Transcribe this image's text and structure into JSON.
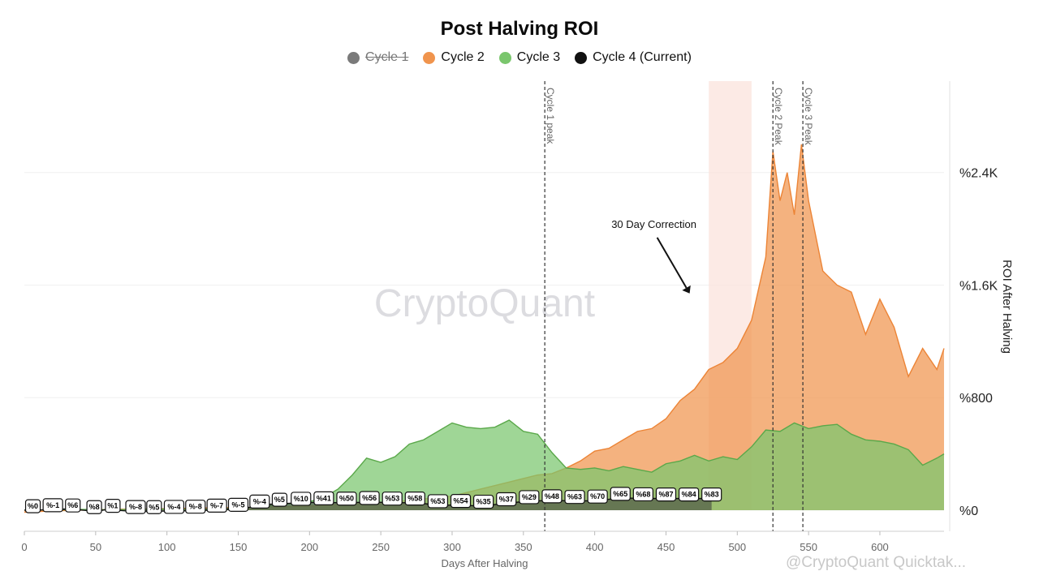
{
  "chart_data": {
    "type": "area",
    "title": "Post Halving ROI",
    "xlabel": "Days After Halving",
    "ylabel": "ROI After Halving",
    "xlim": [
      0,
      645
    ],
    "ylim": [
      -150,
      3050
    ],
    "x_ticks": [
      0,
      50,
      100,
      150,
      200,
      250,
      300,
      350,
      400,
      450,
      500,
      550,
      600
    ],
    "y_ticks": [
      {
        "value": 0,
        "label": "%0"
      },
      {
        "value": 800,
        "label": "%800"
      },
      {
        "value": 1600,
        "label": "%1.6K"
      },
      {
        "value": 2400,
        "label": "%2.4K"
      }
    ],
    "grid": true,
    "legend_position": "top-center",
    "series": [
      {
        "name": "Cycle 1",
        "color": "#7a7a7a",
        "hidden": true
      },
      {
        "name": "Cycle 2",
        "color": "#f0944d",
        "x": [
          0,
          20,
          40,
          60,
          80,
          100,
          120,
          140,
          160,
          180,
          200,
          220,
          240,
          260,
          280,
          300,
          320,
          340,
          360,
          370,
          380,
          390,
          400,
          410,
          420,
          430,
          440,
          450,
          460,
          470,
          480,
          490,
          500,
          510,
          520,
          525,
          530,
          535,
          540,
          545,
          550,
          555,
          560,
          570,
          580,
          590,
          600,
          610,
          620,
          630,
          640,
          645
        ],
        "y": [
          -15,
          -5,
          0,
          5,
          8,
          10,
          15,
          18,
          20,
          25,
          30,
          40,
          50,
          60,
          80,
          100,
          150,
          200,
          250,
          260,
          300,
          350,
          420,
          440,
          500,
          560,
          580,
          650,
          780,
          860,
          1000,
          1050,
          1150,
          1350,
          1800,
          2550,
          2200,
          2400,
          2100,
          2600,
          2200,
          1950,
          1700,
          1600,
          1550,
          1250,
          1500,
          1300,
          950,
          1150,
          1000,
          1150
        ]
      },
      {
        "name": "Cycle 3",
        "color": "#7ac66d",
        "x": [
          0,
          20,
          40,
          60,
          80,
          100,
          120,
          140,
          160,
          180,
          200,
          210,
          220,
          230,
          240,
          250,
          260,
          270,
          280,
          290,
          300,
          310,
          320,
          330,
          340,
          350,
          360,
          370,
          380,
          390,
          400,
          410,
          420,
          430,
          440,
          450,
          460,
          470,
          480,
          490,
          500,
          510,
          520,
          530,
          540,
          550,
          560,
          570,
          580,
          590,
          600,
          610,
          620,
          630,
          640,
          645
        ],
        "y": [
          0,
          2,
          5,
          3,
          5,
          8,
          6,
          10,
          20,
          40,
          60,
          90,
          150,
          250,
          370,
          340,
          380,
          470,
          500,
          560,
          620,
          590,
          580,
          590,
          640,
          560,
          540,
          410,
          300,
          290,
          300,
          280,
          310,
          290,
          270,
          330,
          350,
          390,
          350,
          380,
          360,
          450,
          570,
          560,
          620,
          580,
          600,
          610,
          540,
          500,
          490,
          470,
          430,
          320,
          370,
          400
        ]
      },
      {
        "name": "Cycle 4 (Current)",
        "color": "#111111",
        "x": [
          0,
          8,
          18,
          28,
          40,
          50,
          58,
          70,
          82,
          95,
          108,
          122,
          138,
          152,
          170,
          188,
          205,
          225,
          243,
          260,
          275,
          290,
          305,
          320,
          337,
          352,
          370,
          386,
          402,
          418,
          433,
          450,
          465,
          482
        ],
        "y": [
          0,
          -1,
          6,
          8,
          1,
          -8,
          5,
          -4,
          -8,
          -7,
          -5,
          -4,
          5,
          10,
          41,
          50,
          56,
          53,
          58,
          53,
          54,
          35,
          37,
          29,
          48,
          63,
          70,
          65,
          68,
          87,
          84,
          83,
          83,
          83
        ]
      }
    ],
    "data_labels": [
      {
        "x": 6,
        "label": "%0"
      },
      {
        "x": 20,
        "label": "%-1"
      },
      {
        "x": 34,
        "label": "%6"
      },
      {
        "x": 49,
        "label": "%8"
      },
      {
        "x": 62,
        "label": "%1"
      },
      {
        "x": 78,
        "label": "%-8"
      },
      {
        "x": 91,
        "label": "%5"
      },
      {
        "x": 105,
        "label": "%-4"
      },
      {
        "x": 120,
        "label": "%-8"
      },
      {
        "x": 135,
        "label": "%-7"
      },
      {
        "x": 150,
        "label": "%-5"
      },
      {
        "x": 165,
        "label": "%-4"
      },
      {
        "x": 179,
        "label": "%5"
      },
      {
        "x": 194,
        "label": "%10"
      },
      {
        "x": 210,
        "label": "%41"
      },
      {
        "x": 226,
        "label": "%50"
      },
      {
        "x": 242,
        "label": "%56"
      },
      {
        "x": 258,
        "label": "%53"
      },
      {
        "x": 274,
        "label": "%58"
      },
      {
        "x": 290,
        "label": "%53"
      },
      {
        "x": 306,
        "label": "%54"
      },
      {
        "x": 322,
        "label": "%35"
      },
      {
        "x": 338,
        "label": "%37"
      },
      {
        "x": 354,
        "label": "%29"
      },
      {
        "x": 370,
        "label": "%48"
      },
      {
        "x": 386,
        "label": "%63"
      },
      {
        "x": 402,
        "label": "%70"
      },
      {
        "x": 418,
        "label": "%65"
      },
      {
        "x": 434,
        "label": "%68"
      },
      {
        "x": 450,
        "label": "%87"
      },
      {
        "x": 466,
        "label": "%84"
      },
      {
        "x": 482,
        "label": "%83"
      }
    ],
    "vertical_markers": [
      {
        "x": 365,
        "label": "Cycle 1 peak"
      },
      {
        "x": 525,
        "label": "Cycle 2 Peak"
      },
      {
        "x": 546,
        "label": "Cycle 3 Peak"
      }
    ],
    "shaded_region": {
      "x0": 480,
      "x1": 510,
      "color": "#fbe3dc"
    },
    "annotation": {
      "text": "30 Day Correction",
      "x": 470,
      "y": 1500
    }
  },
  "watermark": "CryptoQuant",
  "footer_watermark": "@CryptoQuant Quicktak..."
}
